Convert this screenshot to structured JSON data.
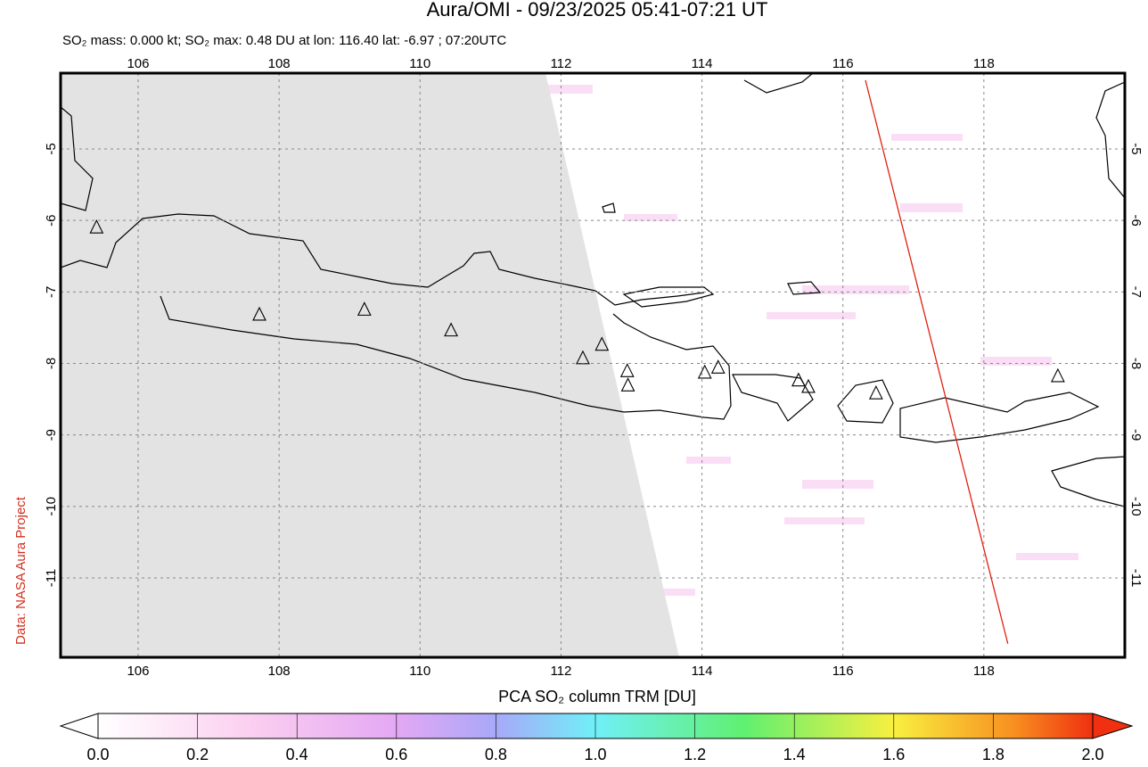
{
  "title": "Aura/OMI - 09/23/2025 05:41-07:21 UT",
  "subtitle": "SO₂ mass: 0.000 kt; SO₂ max: 0.48 DU at lon: 116.40 lat: -6.97 ; 07:20UTC",
  "credit": "Data: NASA Aura Project",
  "map": {
    "xlim": [
      104.9,
      120.0
    ],
    "ylim": [
      -12.11,
      -3.94
    ],
    "xticks": [
      106,
      108,
      110,
      112,
      114,
      116,
      118
    ],
    "yticks": [
      -5,
      -6,
      -7,
      -8,
      -9,
      -10,
      -11
    ],
    "volcanoes": [
      [
        105.41,
        -6.1
      ],
      [
        107.72,
        -7.32
      ],
      [
        109.21,
        -7.25
      ],
      [
        110.44,
        -7.54
      ],
      [
        112.31,
        -7.93
      ],
      [
        112.58,
        -7.74
      ],
      [
        112.95,
        -8.31
      ],
      [
        112.94,
        -8.11
      ],
      [
        114.04,
        -8.13
      ],
      [
        114.23,
        -8.06
      ],
      [
        115.37,
        -8.24
      ],
      [
        115.51,
        -8.33
      ],
      [
        116.47,
        -8.42
      ],
      [
        119.05,
        -8.18
      ]
    ],
    "track": {
      "color": "#e02010",
      "lon": [
        116.32,
        118.34
      ],
      "lat": [
        -4.04,
        -11.92
      ]
    }
  },
  "colorbar": {
    "label": "PCA SO₂ column TRM [DU]",
    "lim": [
      0,
      2
    ],
    "ticks": [
      {
        "value": 0,
        "label": "0.0"
      },
      {
        "value": 0.2,
        "label": "0.2"
      },
      {
        "value": 0.4,
        "label": "0.4"
      },
      {
        "value": 0.6,
        "label": "0.6"
      },
      {
        "value": 0.8,
        "label": "0.8"
      },
      {
        "value": 1,
        "label": "1.0"
      },
      {
        "value": 1.2,
        "label": "1.2"
      },
      {
        "value": 1.4,
        "label": "1.4"
      },
      {
        "value": 1.6,
        "label": "1.6"
      },
      {
        "value": 1.8,
        "label": "1.8"
      },
      {
        "value": 2,
        "label": "2.0"
      }
    ]
  }
}
